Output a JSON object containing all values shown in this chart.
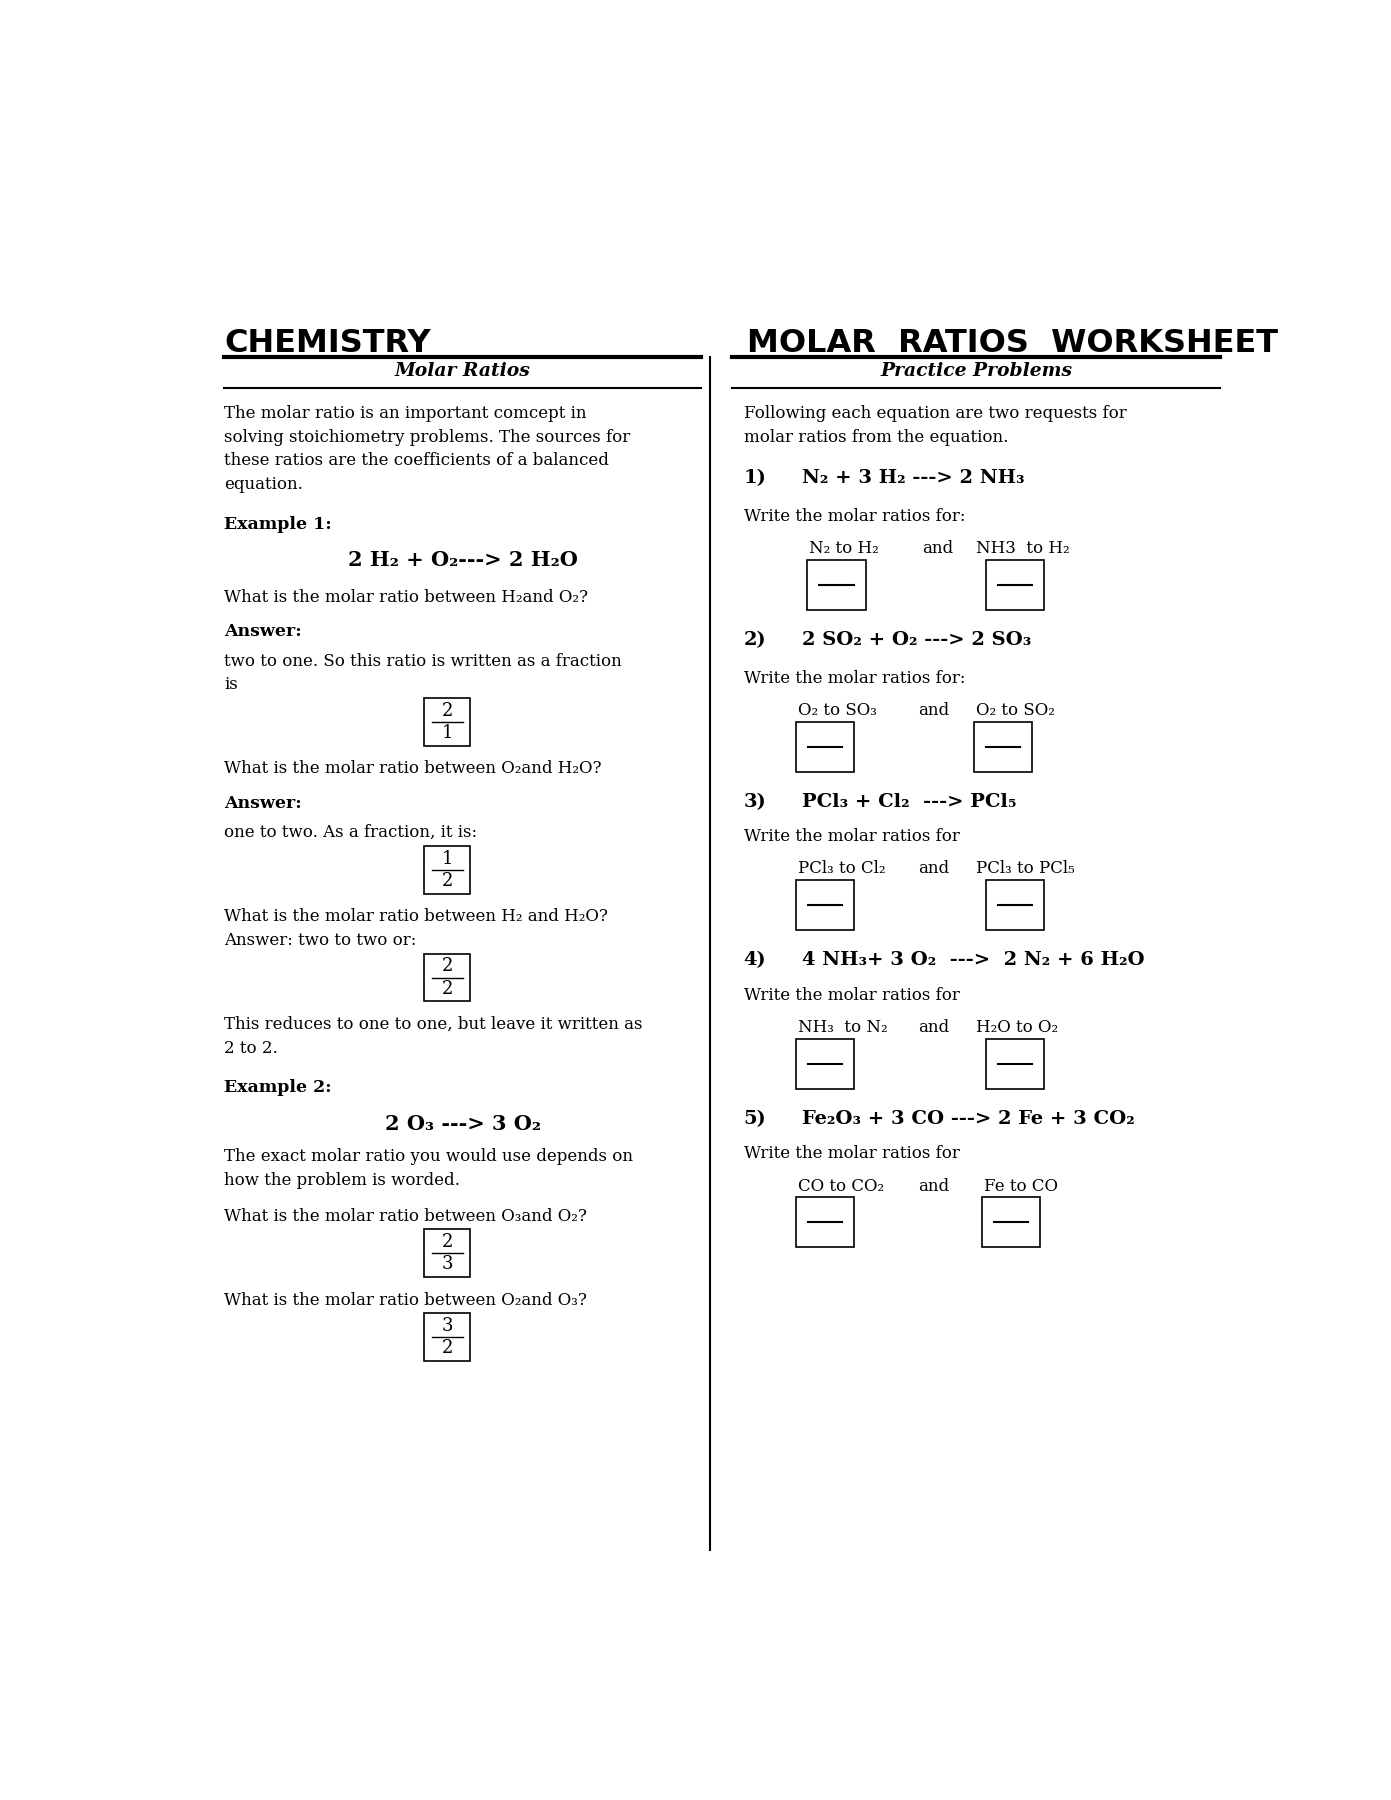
{
  "bg_color": "#ffffff",
  "text_color": "#000000",
  "page_width": 13.91,
  "page_height": 18.0,
  "title_left": "CHEMISTRY",
  "title_right": "MOLAR  RATIOS  WORKSHEET",
  "subtitle_left": "Molar Ratios",
  "subtitle_right": "Practice Problems",
  "left_intro": [
    "The molar ratio is an important comcept in",
    "solving stoichiometry problems. The sources for",
    "these ratios are the coefficients of a balanced",
    "equation."
  ],
  "right_intro": [
    "Following each equation are two requests for",
    "molar ratios from the equation."
  ],
  "example1_label": "Example 1:",
  "example1_eq": "2 H₂ + O₂---> 2 H₂O",
  "q1_molar": "What is the molar ratio between H₂and O₂?",
  "answer1": "Answer:",
  "answer1_text": [
    "two to one. So this ratio is written as a fraction",
    "is"
  ],
  "frac1_num": "2",
  "frac1_den": "1",
  "q2_molar": "What is the molar ratio between O₂and H₂O?",
  "answer2": "Answer:",
  "answer2_text": "one to two. As a fraction, it is:",
  "frac2_num": "1",
  "frac2_den": "2",
  "q3_molar": "What is the molar ratio between H₂ and H₂O?",
  "answer3_text": "Answer: two to two or:",
  "frac3_num": "2",
  "frac3_den": "2",
  "reduces_text": [
    "This reduces to one to one, but leave it written as",
    "2 to 2."
  ],
  "example2_label": "Example 2:",
  "example2_eq": "2 O₃ ---> 3 O₂",
  "example2_desc": [
    "The exact molar ratio you would use depends on",
    "how the problem is worded."
  ],
  "q4_molar": "What is the molar ratio between O₃and O₂?",
  "frac4_num": "2",
  "frac4_den": "3",
  "q5_molar": "What is the molar ratio between O₂and O₃?",
  "frac5_num": "3",
  "frac5_den": "2",
  "prob1_num": "1)",
  "prob1_eq": "N₂ + 3 H₂ ---> 2 NH₃",
  "prob1_write": "Write the molar ratios for:",
  "prob1_label1": "N₂ to H₂",
  "prob1_and": "and",
  "prob1_label2": "NH3  to H₂",
  "prob2_num": "2)",
  "prob2_eq": "2 SO₂ + O₂ ---> 2 SO₃",
  "prob2_write": "Write the molar ratios for:",
  "prob2_label1": "O₂ to SO₃",
  "prob2_and": "and",
  "prob2_label2": "O₂ to SO₂",
  "prob3_num": "3)",
  "prob3_eq": "PCl₃ + Cl₂  ---> PCl₅",
  "prob3_write": "Write the molar ratios for",
  "prob3_label1": "PCl₃ to Cl₂",
  "prob3_and": "and",
  "prob3_label2": "PCl₃ to PCl₅",
  "prob4_num": "4)",
  "prob4_eq": "4 NH₃+ 3 O₂  --->  2 N₂ + 6 H₂O",
  "prob4_write": "Write the molar ratios for",
  "prob4_label1": "NH₃  to N₂",
  "prob4_and": "and",
  "prob4_label2": "H₂O to O₂",
  "prob5_num": "5)",
  "prob5_eq": "Fe₂O₃ + 3 CO ---> 2 Fe + 3 CO₂",
  "prob5_write": "Write the molar ratios for",
  "prob5_label1": "CO to CO₂",
  "prob5_and": "and",
  "prob5_label2": "Fe to CO"
}
